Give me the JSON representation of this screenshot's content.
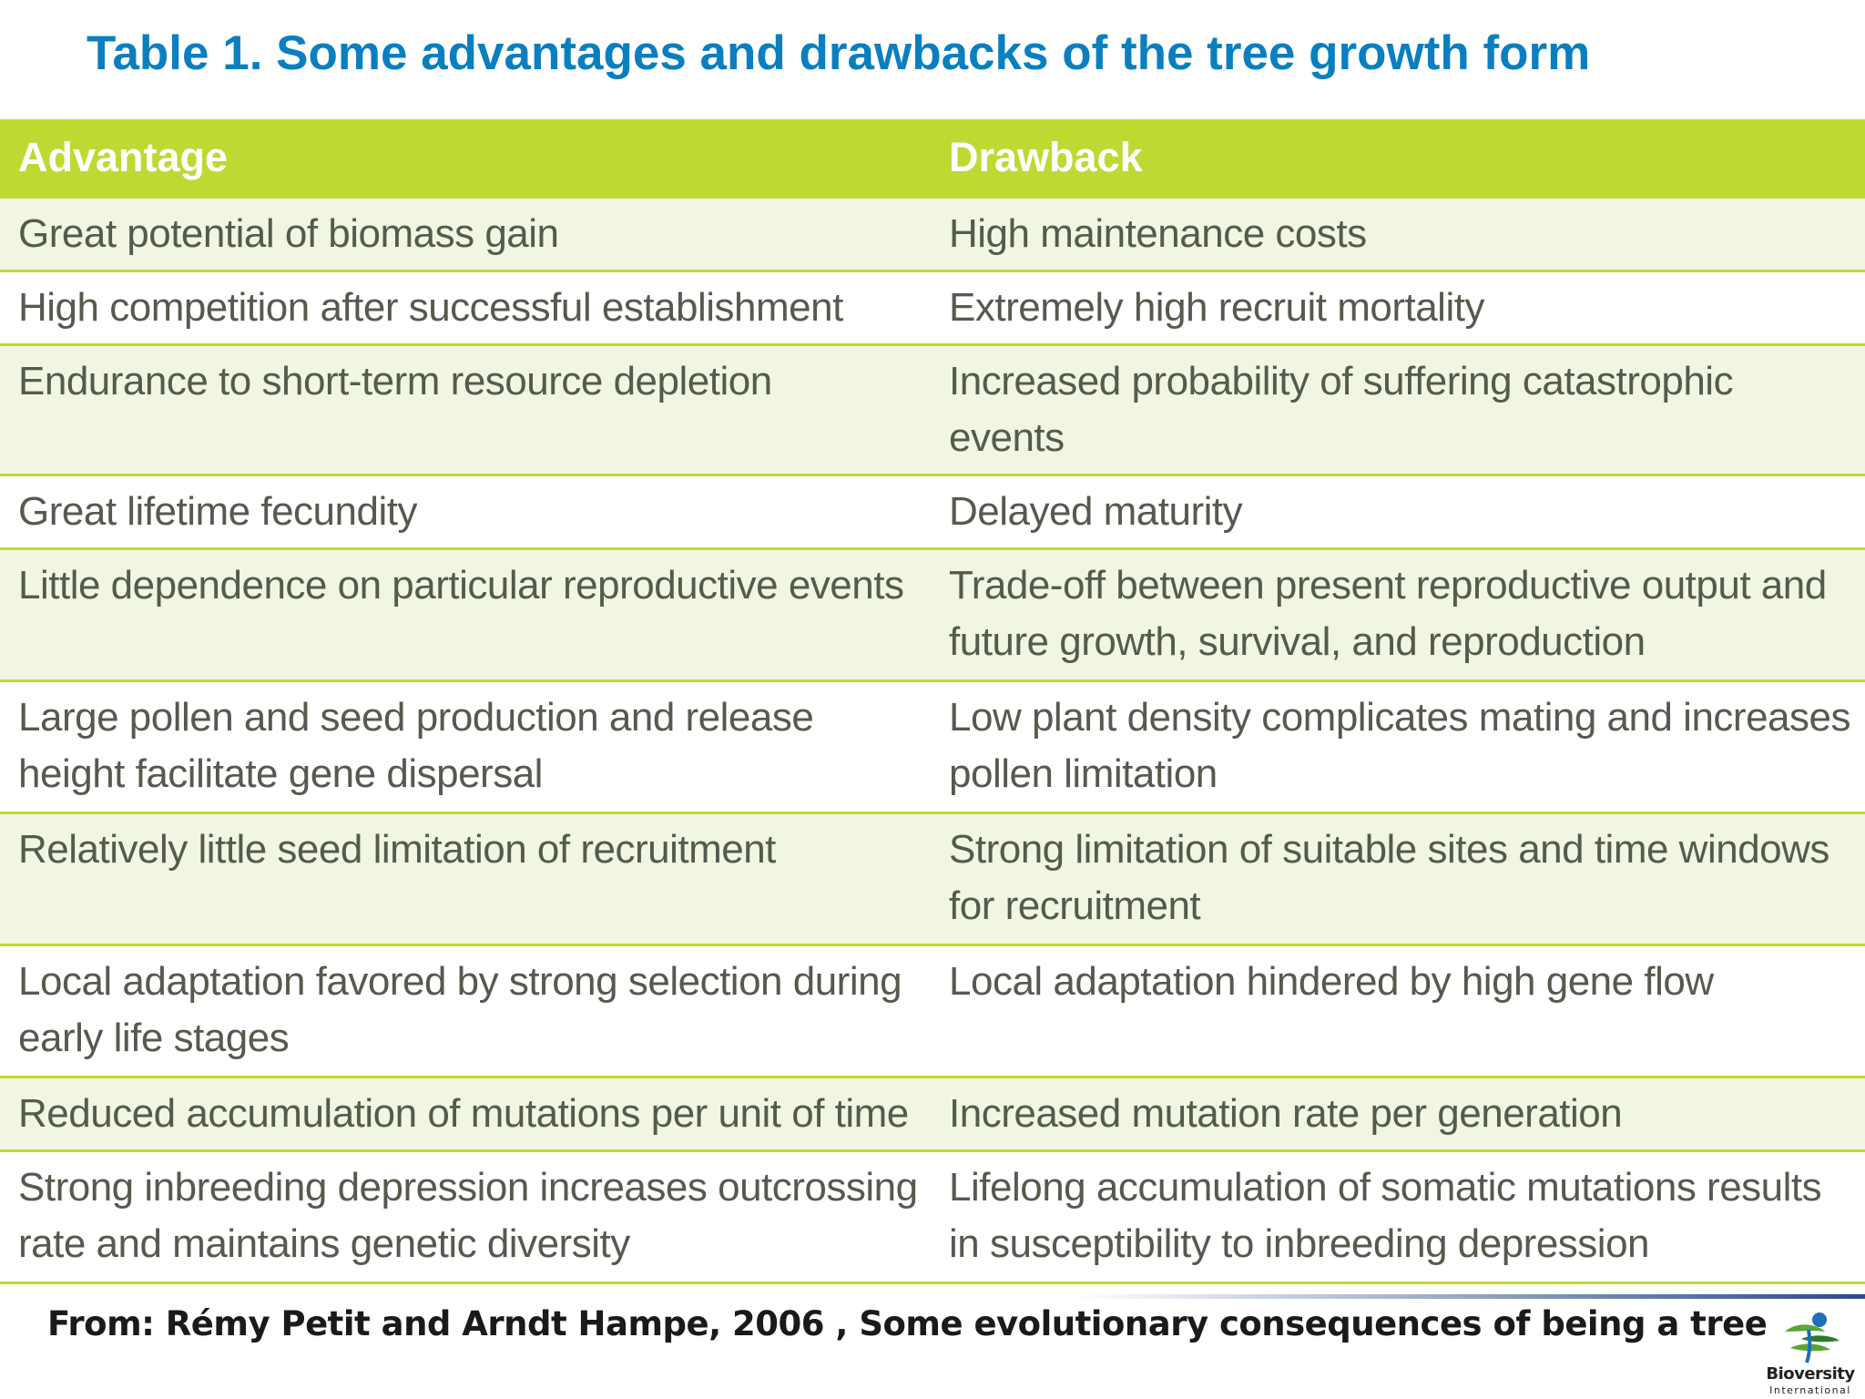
{
  "title": "Table 1. Some advantages and drawbacks of the tree growth form",
  "table": {
    "headers": [
      "Advantage",
      "Drawback"
    ],
    "rows": [
      [
        "Great potential of biomass gain",
        "High maintenance costs"
      ],
      [
        "High competition after successful establishment",
        "Extremely high recruit mortality"
      ],
      [
        "Endurance to short-term resource depletion",
        "Increased probability of suffering catastrophic events"
      ],
      [
        "Great lifetime fecundity",
        "Delayed maturity"
      ],
      [
        "Little dependence on particular reproductive events",
        "Trade-off between present reproductive output and future growth, survival, and reproduction"
      ],
      [
        "Large pollen and seed production and release height facilitate gene dispersal",
        "Low plant density complicates mating and increases pollen  limitation"
      ],
      [
        "Relatively little seed limitation of recruitment",
        "Strong limitation of suitable sites and time windows for recruitment"
      ],
      [
        "Local adaptation favored by strong selection during early life stages",
        "Local adaptation hindered by high gene flow"
      ],
      [
        "Reduced accumulation of mutations per unit of time",
        "Increased mutation rate per generation"
      ],
      [
        "Strong inbreeding depression increases outcrossing rate and maintains genetic diversity",
        "Lifelong accumulation of somatic mutations results in susceptibility to inbreeding depression"
      ]
    ]
  },
  "citation": "From: Rémy Petit and Arndt Hampe, 2006 , Some evolutionary consequences of being a tree",
  "logo": {
    "name": "Bioversity",
    "subtitle": "International",
    "colors": {
      "green": "#5aa632",
      "blue": "#1e6fb5",
      "dark_green": "#2f7a2a"
    }
  },
  "colors": {
    "title": "#0a7fc0",
    "header_bg": "#bfd932",
    "row_tint": "#f1f6e2",
    "body_text": "#555a4e"
  }
}
